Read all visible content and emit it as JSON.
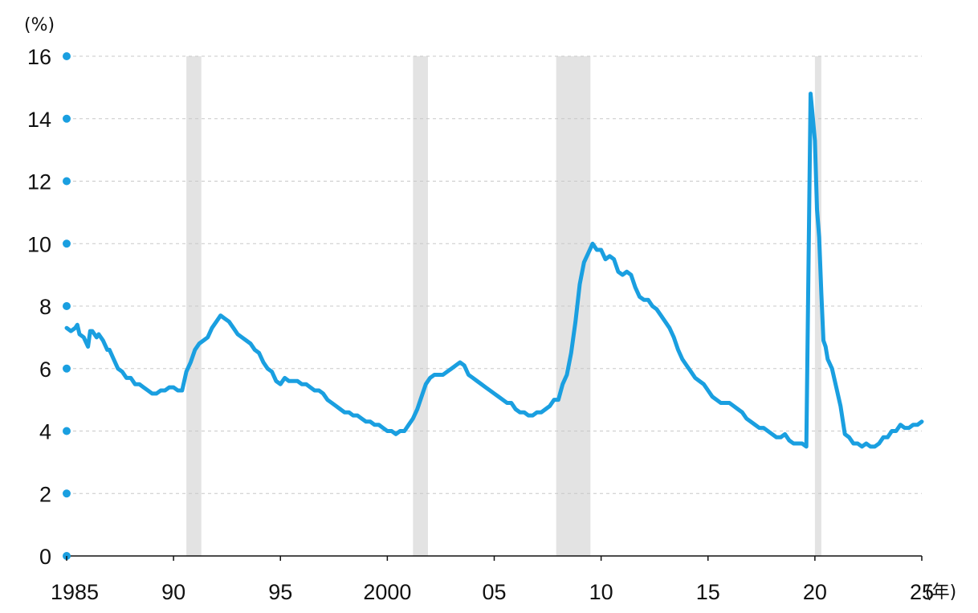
{
  "chart_data": {
    "type": "line",
    "title": "",
    "xlabel": "",
    "ylabel": "",
    "y_unit_label": "(%)",
    "x_unit_label": "(年)",
    "xlim": [
      1985.0,
      2025.0
    ],
    "ylim": [
      0,
      16
    ],
    "grid": {
      "horizontal": true,
      "style": "dashed"
    },
    "legend": "none",
    "colors": {
      "line": "#1a9fe0",
      "shade": "#e3e3e3",
      "axis": "#111111",
      "grid": "#c8c8c8"
    },
    "y_ticks": [
      {
        "value": 0,
        "label": "0"
      },
      {
        "value": 2,
        "label": "2"
      },
      {
        "value": 4,
        "label": "4"
      },
      {
        "value": 6,
        "label": "6"
      },
      {
        "value": 8,
        "label": "8"
      },
      {
        "value": 10,
        "label": "10"
      },
      {
        "value": 12,
        "label": "12"
      },
      {
        "value": 14,
        "label": "14"
      },
      {
        "value": 16,
        "label": "16"
      }
    ],
    "x_ticks": [
      {
        "value": 1985,
        "label": "1985"
      },
      {
        "value": 1990,
        "label": "90"
      },
      {
        "value": 1995,
        "label": "95"
      },
      {
        "value": 2000,
        "label": "2000"
      },
      {
        "value": 2005,
        "label": "05"
      },
      {
        "value": 2010,
        "label": "10"
      },
      {
        "value": 2015,
        "label": "15"
      },
      {
        "value": 2020,
        "label": "20"
      },
      {
        "value": 2025,
        "label": "25"
      }
    ],
    "shaded_periods": [
      [
        1990.6,
        1991.3
      ],
      [
        2001.2,
        2001.9
      ],
      [
        2007.9,
        2009.5
      ],
      [
        2020.0,
        2020.3
      ]
    ],
    "series": [
      {
        "x": [
          1985.0,
          1985.2,
          1985.4,
          1985.5,
          1985.6,
          1985.8,
          1986.0,
          1986.1,
          1986.2,
          1986.4,
          1986.5,
          1986.7,
          1986.9,
          1987.0,
          1987.2,
          1987.4,
          1987.6,
          1987.8,
          1988.0,
          1988.2,
          1988.4,
          1988.6,
          1988.8,
          1989.0,
          1989.2,
          1989.4,
          1989.6,
          1989.8,
          1990.0,
          1990.2,
          1990.4,
          1990.6,
          1990.8,
          1991.0,
          1991.2,
          1991.4,
          1991.6,
          1991.8,
          1992.0,
          1992.2,
          1992.4,
          1992.6,
          1992.8,
          1993.0,
          1993.2,
          1993.4,
          1993.6,
          1993.8,
          1994.0,
          1994.2,
          1994.4,
          1994.6,
          1994.8,
          1995.0,
          1995.2,
          1995.4,
          1995.6,
          1995.8,
          1996.0,
          1996.2,
          1996.4,
          1996.6,
          1996.8,
          1997.0,
          1997.2,
          1997.4,
          1997.6,
          1997.8,
          1998.0,
          1998.2,
          1998.4,
          1998.6,
          1998.8,
          1999.0,
          1999.2,
          1999.4,
          1999.6,
          1999.8,
          2000.0,
          2000.2,
          2000.4,
          2000.6,
          2000.8,
          2001.0,
          2001.2,
          2001.4,
          2001.6,
          2001.8,
          2002.0,
          2002.2,
          2002.4,
          2002.6,
          2002.8,
          2003.0,
          2003.2,
          2003.4,
          2003.6,
          2003.8,
          2004.0,
          2004.2,
          2004.4,
          2004.6,
          2004.8,
          2005.0,
          2005.2,
          2005.4,
          2005.6,
          2005.8,
          2006.0,
          2006.2,
          2006.4,
          2006.6,
          2006.8,
          2007.0,
          2007.2,
          2007.4,
          2007.6,
          2007.8,
          2008.0,
          2008.2,
          2008.4,
          2008.6,
          2008.8,
          2009.0,
          2009.2,
          2009.4,
          2009.6,
          2009.8,
          2010.0,
          2010.2,
          2010.4,
          2010.6,
          2010.8,
          2011.0,
          2011.2,
          2011.4,
          2011.6,
          2011.8,
          2012.0,
          2012.2,
          2012.4,
          2012.6,
          2012.8,
          2013.0,
          2013.2,
          2013.4,
          2013.6,
          2013.8,
          2014.0,
          2014.2,
          2014.4,
          2014.6,
          2014.8,
          2015.0,
          2015.2,
          2015.4,
          2015.6,
          2015.8,
          2016.0,
          2016.2,
          2016.4,
          2016.6,
          2016.8,
          2017.0,
          2017.2,
          2017.4,
          2017.6,
          2017.8,
          2018.0,
          2018.2,
          2018.4,
          2018.6,
          2018.8,
          2019.0,
          2019.2,
          2019.4,
          2019.6,
          2019.8,
          2020.0,
          2020.1,
          2020.2,
          2020.3,
          2020.4,
          2020.5,
          2020.6,
          2020.8,
          2021.0,
          2021.2,
          2021.4,
          2021.6,
          2021.8,
          2022.0,
          2022.2,
          2022.4,
          2022.6,
          2022.8,
          2023.0,
          2023.2,
          2023.4,
          2023.6,
          2023.8,
          2024.0,
          2024.2,
          2024.4,
          2024.6,
          2024.8,
          2025.0
        ],
        "y": [
          7.3,
          7.2,
          7.3,
          7.4,
          7.1,
          7.0,
          6.7,
          7.2,
          7.2,
          7.0,
          7.1,
          6.9,
          6.6,
          6.6,
          6.3,
          6.0,
          5.9,
          5.7,
          5.7,
          5.5,
          5.5,
          5.4,
          5.3,
          5.2,
          5.2,
          5.3,
          5.3,
          5.4,
          5.4,
          5.3,
          5.3,
          5.9,
          6.2,
          6.6,
          6.8,
          6.9,
          7.0,
          7.3,
          7.5,
          7.7,
          7.6,
          7.5,
          7.3,
          7.1,
          7.0,
          6.9,
          6.8,
          6.6,
          6.5,
          6.2,
          6.0,
          5.9,
          5.6,
          5.5,
          5.7,
          5.6,
          5.6,
          5.6,
          5.5,
          5.5,
          5.4,
          5.3,
          5.3,
          5.2,
          5.0,
          4.9,
          4.8,
          4.7,
          4.6,
          4.6,
          4.5,
          4.5,
          4.4,
          4.3,
          4.3,
          4.2,
          4.2,
          4.1,
          4.0,
          4.0,
          3.9,
          4.0,
          4.0,
          4.2,
          4.4,
          4.7,
          5.1,
          5.5,
          5.7,
          5.8,
          5.8,
          5.8,
          5.9,
          6.0,
          6.1,
          6.2,
          6.1,
          5.8,
          5.7,
          5.6,
          5.5,
          5.4,
          5.3,
          5.2,
          5.1,
          5.0,
          4.9,
          4.9,
          4.7,
          4.6,
          4.6,
          4.5,
          4.5,
          4.6,
          4.6,
          4.7,
          4.8,
          5.0,
          5.0,
          5.5,
          5.8,
          6.5,
          7.5,
          8.7,
          9.4,
          9.7,
          10.0,
          9.8,
          9.8,
          9.5,
          9.6,
          9.5,
          9.1,
          9.0,
          9.1,
          9.0,
          8.6,
          8.3,
          8.2,
          8.2,
          8.0,
          7.9,
          7.7,
          7.5,
          7.3,
          7.0,
          6.6,
          6.3,
          6.1,
          5.9,
          5.7,
          5.6,
          5.5,
          5.3,
          5.1,
          5.0,
          4.9,
          4.9,
          4.9,
          4.8,
          4.7,
          4.6,
          4.4,
          4.3,
          4.2,
          4.1,
          4.1,
          4.0,
          3.9,
          3.8,
          3.8,
          3.9,
          3.7,
          3.6,
          3.6,
          3.6,
          3.5,
          14.8,
          13.3,
          11.1,
          10.2,
          8.4,
          6.9,
          6.7,
          6.3,
          6.0,
          5.4,
          4.8,
          3.9,
          3.8,
          3.6,
          3.6,
          3.5,
          3.6,
          3.5,
          3.5,
          3.6,
          3.8,
          3.8,
          4.0,
          4.0,
          4.2,
          4.1,
          4.1,
          4.2,
          4.2,
          4.3
        ]
      }
    ]
  }
}
